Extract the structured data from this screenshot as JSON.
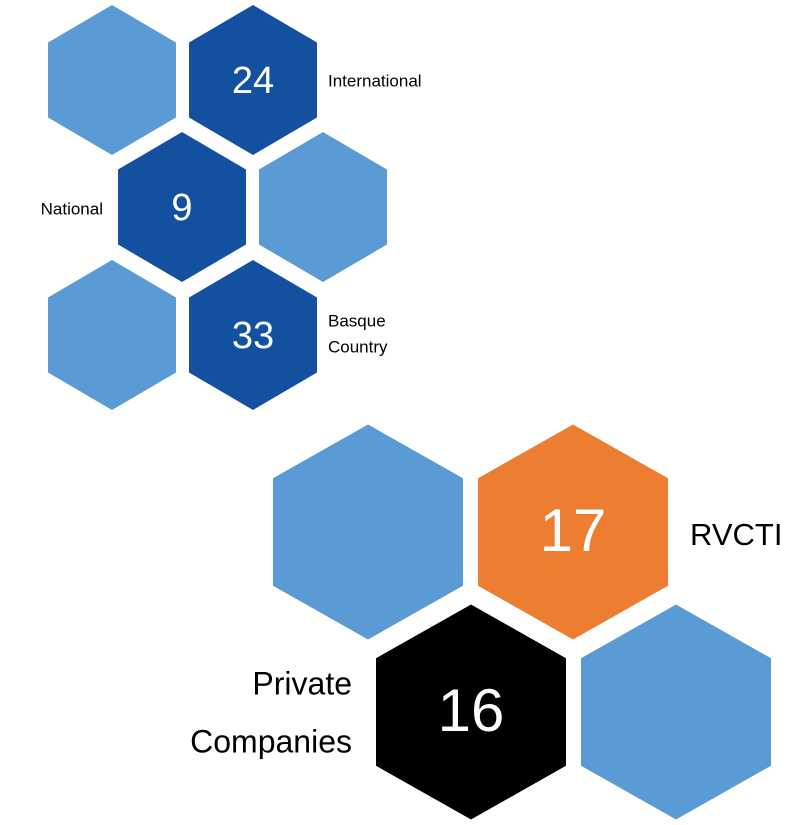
{
  "groups": [
    {
      "nodes": [
        {
          "value": "24",
          "label": [
            "International"
          ]
        },
        {
          "value": "9",
          "label": [
            "National"
          ]
        },
        {
          "value": "33",
          "label": [
            "Basque",
            "Country"
          ]
        }
      ]
    },
    {
      "nodes": [
        {
          "value": "17",
          "label": [
            "RVCTI"
          ]
        },
        {
          "value": "16",
          "label": [
            "Private",
            "Companies"
          ]
        }
      ]
    }
  ]
}
